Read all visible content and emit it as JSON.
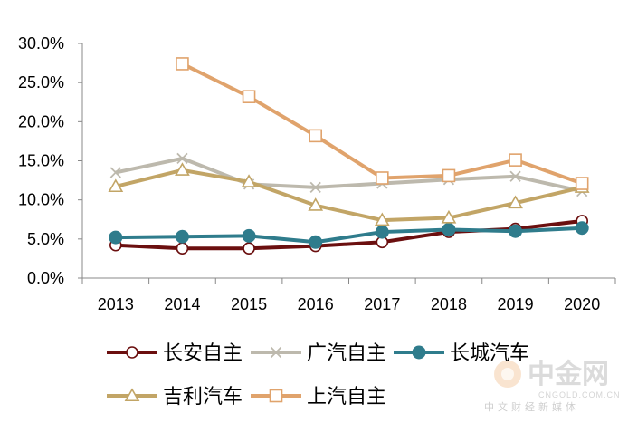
{
  "chart_data": {
    "type": "line",
    "categories": [
      "2013",
      "2014",
      "2015",
      "2016",
      "2017",
      "2018",
      "2019",
      "2020"
    ],
    "y_tick_labels": [
      "0.0%",
      "5.0%",
      "10.0%",
      "15.0%",
      "20.0%",
      "25.0%",
      "30.0%"
    ],
    "ylim": [
      0,
      30
    ],
    "grid": false,
    "legend_position": "bottom",
    "series": [
      {
        "name": "长安自主",
        "color": "#6b0f0f",
        "marker": "circle-open",
        "values": [
          4.2,
          3.8,
          3.8,
          4.1,
          4.6,
          5.9,
          6.3,
          7.3
        ]
      },
      {
        "name": "广汽自主",
        "color": "#bdb9ad",
        "marker": "x",
        "values": [
          13.5,
          15.3,
          12.0,
          11.6,
          12.1,
          12.6,
          13.0,
          11.1
        ]
      },
      {
        "name": "长城汽车",
        "color": "#2f7c8c",
        "marker": "circle-filled",
        "values": [
          5.2,
          5.3,
          5.4,
          4.6,
          5.9,
          6.2,
          6.0,
          6.4
        ]
      },
      {
        "name": "吉利汽车",
        "color": "#c2a566",
        "marker": "triangle-open",
        "values": [
          11.7,
          13.8,
          12.3,
          9.3,
          7.4,
          7.7,
          9.6,
          11.6
        ]
      },
      {
        "name": "上汽自主",
        "color": "#e0a36c",
        "marker": "square-open",
        "values": [
          null,
          27.4,
          23.2,
          18.2,
          12.8,
          13.1,
          15.1,
          12.1
        ]
      }
    ]
  },
  "watermark": {
    "name": "中金网",
    "domain": "CNGOLD.COM.CN",
    "tagline": "中文财经新媒体"
  }
}
